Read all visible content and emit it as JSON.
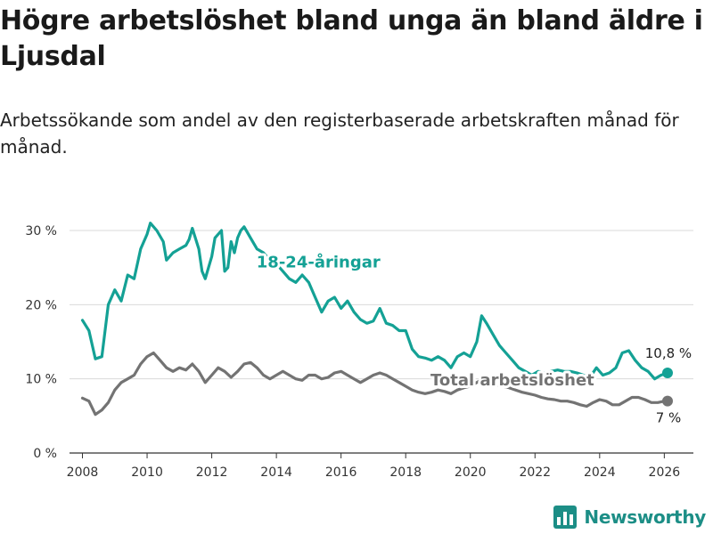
{
  "title": "Högre arbetslöshet bland unga än bland äldre i Ljusdal",
  "subtitle": "Arbetssökande som andel av den registerbaserade arbetskraften månad för månad.",
  "brand": {
    "name": "Newsworthy",
    "icon": "bar-chart-logo-icon",
    "color": "#1c8e86"
  },
  "colors": {
    "youth": "#14a195",
    "total": "#737373",
    "grid": "#d9d9d9",
    "axis": "#333333"
  },
  "chart_data": {
    "type": "line",
    "title": "Högre arbetslöshet bland unga än bland äldre i Ljusdal",
    "xlabel": "",
    "ylabel": "",
    "xlim": [
      2007.6,
      2026.9
    ],
    "ylim": [
      0,
      30
    ],
    "x_ticks": [
      2008,
      2010,
      2012,
      2014,
      2016,
      2018,
      2020,
      2022,
      2024,
      2026
    ],
    "x_tick_labels": [
      "2008",
      "2010",
      "2012",
      "2014",
      "2016",
      "2018",
      "2020",
      "2022",
      "2024",
      "2026"
    ],
    "y_ticks": [
      0,
      10,
      20,
      30
    ],
    "y_tick_labels": [
      "0 %",
      "10 %",
      "20 %",
      "30 %"
    ],
    "grid": true,
    "series": [
      {
        "name": "18-24-åringar",
        "label": "18-24-åringar",
        "color": "#14a195",
        "last_label": "10,8 %",
        "points": [
          [
            2008.0,
            17.9
          ],
          [
            2008.2,
            16.5
          ],
          [
            2008.4,
            12.7
          ],
          [
            2008.6,
            13.0
          ],
          [
            2008.8,
            20.0
          ],
          [
            2009.0,
            22.0
          ],
          [
            2009.2,
            20.5
          ],
          [
            2009.4,
            24.0
          ],
          [
            2009.6,
            23.5
          ],
          [
            2009.8,
            27.5
          ],
          [
            2010.0,
            29.5
          ],
          [
            2010.1,
            31.0
          ],
          [
            2010.3,
            30.0
          ],
          [
            2010.5,
            28.5
          ],
          [
            2010.6,
            26.0
          ],
          [
            2010.8,
            27.0
          ],
          [
            2011.0,
            27.5
          ],
          [
            2011.2,
            28.0
          ],
          [
            2011.3,
            28.8
          ],
          [
            2011.4,
            30.3
          ],
          [
            2011.6,
            27.5
          ],
          [
            2011.7,
            24.5
          ],
          [
            2011.8,
            23.5
          ],
          [
            2012.0,
            26.5
          ],
          [
            2012.1,
            29.0
          ],
          [
            2012.3,
            30.0
          ],
          [
            2012.4,
            24.5
          ],
          [
            2012.5,
            25.0
          ],
          [
            2012.6,
            28.5
          ],
          [
            2012.7,
            27.0
          ],
          [
            2012.8,
            29.0
          ],
          [
            2012.9,
            30.0
          ],
          [
            2013.0,
            30.5
          ],
          [
            2013.2,
            29.0
          ],
          [
            2013.4,
            27.5
          ],
          [
            2013.6,
            27.0
          ],
          [
            2013.8,
            26.0
          ],
          [
            2014.0,
            25.5
          ],
          [
            2014.2,
            24.5
          ],
          [
            2014.4,
            23.5
          ],
          [
            2014.6,
            23.0
          ],
          [
            2014.8,
            24.0
          ],
          [
            2015.0,
            23.0
          ],
          [
            2015.2,
            21.0
          ],
          [
            2015.4,
            19.0
          ],
          [
            2015.6,
            20.5
          ],
          [
            2015.8,
            21.0
          ],
          [
            2016.0,
            19.5
          ],
          [
            2016.2,
            20.5
          ],
          [
            2016.4,
            19.0
          ],
          [
            2016.6,
            18.0
          ],
          [
            2016.8,
            17.5
          ],
          [
            2017.0,
            17.8
          ],
          [
            2017.2,
            19.5
          ],
          [
            2017.4,
            17.5
          ],
          [
            2017.6,
            17.2
          ],
          [
            2017.8,
            16.5
          ],
          [
            2018.0,
            16.5
          ],
          [
            2018.2,
            14.0
          ],
          [
            2018.4,
            13.0
          ],
          [
            2018.6,
            12.8
          ],
          [
            2018.8,
            12.5
          ],
          [
            2019.0,
            13.0
          ],
          [
            2019.2,
            12.5
          ],
          [
            2019.4,
            11.5
          ],
          [
            2019.6,
            13.0
          ],
          [
            2019.8,
            13.5
          ],
          [
            2020.0,
            13.0
          ],
          [
            2020.2,
            15.0
          ],
          [
            2020.35,
            18.5
          ],
          [
            2020.5,
            17.5
          ],
          [
            2020.7,
            16.0
          ],
          [
            2020.9,
            14.5
          ],
          [
            2021.1,
            13.5
          ],
          [
            2021.3,
            12.5
          ],
          [
            2021.5,
            11.5
          ],
          [
            2021.7,
            11.0
          ],
          [
            2021.9,
            10.5
          ],
          [
            2022.1,
            11.0
          ],
          [
            2022.3,
            10.8
          ],
          [
            2022.5,
            11.0
          ],
          [
            2022.7,
            11.2
          ],
          [
            2022.9,
            11.0
          ],
          [
            2023.1,
            11.0
          ],
          [
            2023.3,
            10.8
          ],
          [
            2023.5,
            10.5
          ],
          [
            2023.7,
            10.2
          ],
          [
            2023.9,
            11.5
          ],
          [
            2024.1,
            10.5
          ],
          [
            2024.3,
            10.8
          ],
          [
            2024.5,
            11.5
          ],
          [
            2024.7,
            13.5
          ],
          [
            2024.9,
            13.8
          ],
          [
            2025.1,
            12.5
          ],
          [
            2025.3,
            11.5
          ],
          [
            2025.5,
            11.0
          ],
          [
            2025.7,
            10.0
          ],
          [
            2025.9,
            10.5
          ],
          [
            2026.1,
            10.8
          ]
        ]
      },
      {
        "name": "Total arbetslöshet",
        "label": "Total arbetslöshet",
        "color": "#737373",
        "last_label": "7 %",
        "points": [
          [
            2008.0,
            7.4
          ],
          [
            2008.2,
            7.0
          ],
          [
            2008.4,
            5.2
          ],
          [
            2008.6,
            5.8
          ],
          [
            2008.8,
            6.8
          ],
          [
            2009.0,
            8.5
          ],
          [
            2009.2,
            9.5
          ],
          [
            2009.4,
            10.0
          ],
          [
            2009.6,
            10.5
          ],
          [
            2009.8,
            12.0
          ],
          [
            2010.0,
            13.0
          ],
          [
            2010.2,
            13.5
          ],
          [
            2010.4,
            12.5
          ],
          [
            2010.6,
            11.5
          ],
          [
            2010.8,
            11.0
          ],
          [
            2011.0,
            11.5
          ],
          [
            2011.2,
            11.2
          ],
          [
            2011.4,
            12.0
          ],
          [
            2011.6,
            11.0
          ],
          [
            2011.8,
            9.5
          ],
          [
            2012.0,
            10.5
          ],
          [
            2012.2,
            11.5
          ],
          [
            2012.4,
            11.0
          ],
          [
            2012.6,
            10.2
          ],
          [
            2012.8,
            11.0
          ],
          [
            2013.0,
            12.0
          ],
          [
            2013.2,
            12.2
          ],
          [
            2013.4,
            11.5
          ],
          [
            2013.6,
            10.5
          ],
          [
            2013.8,
            10.0
          ],
          [
            2014.0,
            10.5
          ],
          [
            2014.2,
            11.0
          ],
          [
            2014.4,
            10.5
          ],
          [
            2014.6,
            10.0
          ],
          [
            2014.8,
            9.8
          ],
          [
            2015.0,
            10.5
          ],
          [
            2015.2,
            10.5
          ],
          [
            2015.4,
            10.0
          ],
          [
            2015.6,
            10.2
          ],
          [
            2015.8,
            10.8
          ],
          [
            2016.0,
            11.0
          ],
          [
            2016.2,
            10.5
          ],
          [
            2016.4,
            10.0
          ],
          [
            2016.6,
            9.5
          ],
          [
            2016.8,
            10.0
          ],
          [
            2017.0,
            10.5
          ],
          [
            2017.2,
            10.8
          ],
          [
            2017.4,
            10.5
          ],
          [
            2017.6,
            10.0
          ],
          [
            2017.8,
            9.5
          ],
          [
            2018.0,
            9.0
          ],
          [
            2018.2,
            8.5
          ],
          [
            2018.4,
            8.2
          ],
          [
            2018.6,
            8.0
          ],
          [
            2018.8,
            8.2
          ],
          [
            2019.0,
            8.5
          ],
          [
            2019.2,
            8.3
          ],
          [
            2019.4,
            8.0
          ],
          [
            2019.6,
            8.5
          ],
          [
            2019.8,
            8.8
          ],
          [
            2020.0,
            9.0
          ],
          [
            2020.2,
            9.5
          ],
          [
            2020.4,
            10.0
          ],
          [
            2020.6,
            9.8
          ],
          [
            2020.8,
            9.2
          ],
          [
            2021.0,
            9.0
          ],
          [
            2021.2,
            8.8
          ],
          [
            2021.4,
            8.5
          ],
          [
            2021.6,
            8.2
          ],
          [
            2021.8,
            8.0
          ],
          [
            2022.0,
            7.8
          ],
          [
            2022.2,
            7.5
          ],
          [
            2022.4,
            7.3
          ],
          [
            2022.6,
            7.2
          ],
          [
            2022.8,
            7.0
          ],
          [
            2023.0,
            7.0
          ],
          [
            2023.2,
            6.8
          ],
          [
            2023.4,
            6.5
          ],
          [
            2023.6,
            6.3
          ],
          [
            2023.8,
            6.8
          ],
          [
            2024.0,
            7.2
          ],
          [
            2024.2,
            7.0
          ],
          [
            2024.4,
            6.5
          ],
          [
            2024.6,
            6.5
          ],
          [
            2024.8,
            7.0
          ],
          [
            2025.0,
            7.5
          ],
          [
            2025.2,
            7.5
          ],
          [
            2025.4,
            7.2
          ],
          [
            2025.6,
            6.8
          ],
          [
            2025.8,
            6.8
          ],
          [
            2026.0,
            7.0
          ],
          [
            2026.1,
            7.0
          ]
        ]
      }
    ]
  }
}
